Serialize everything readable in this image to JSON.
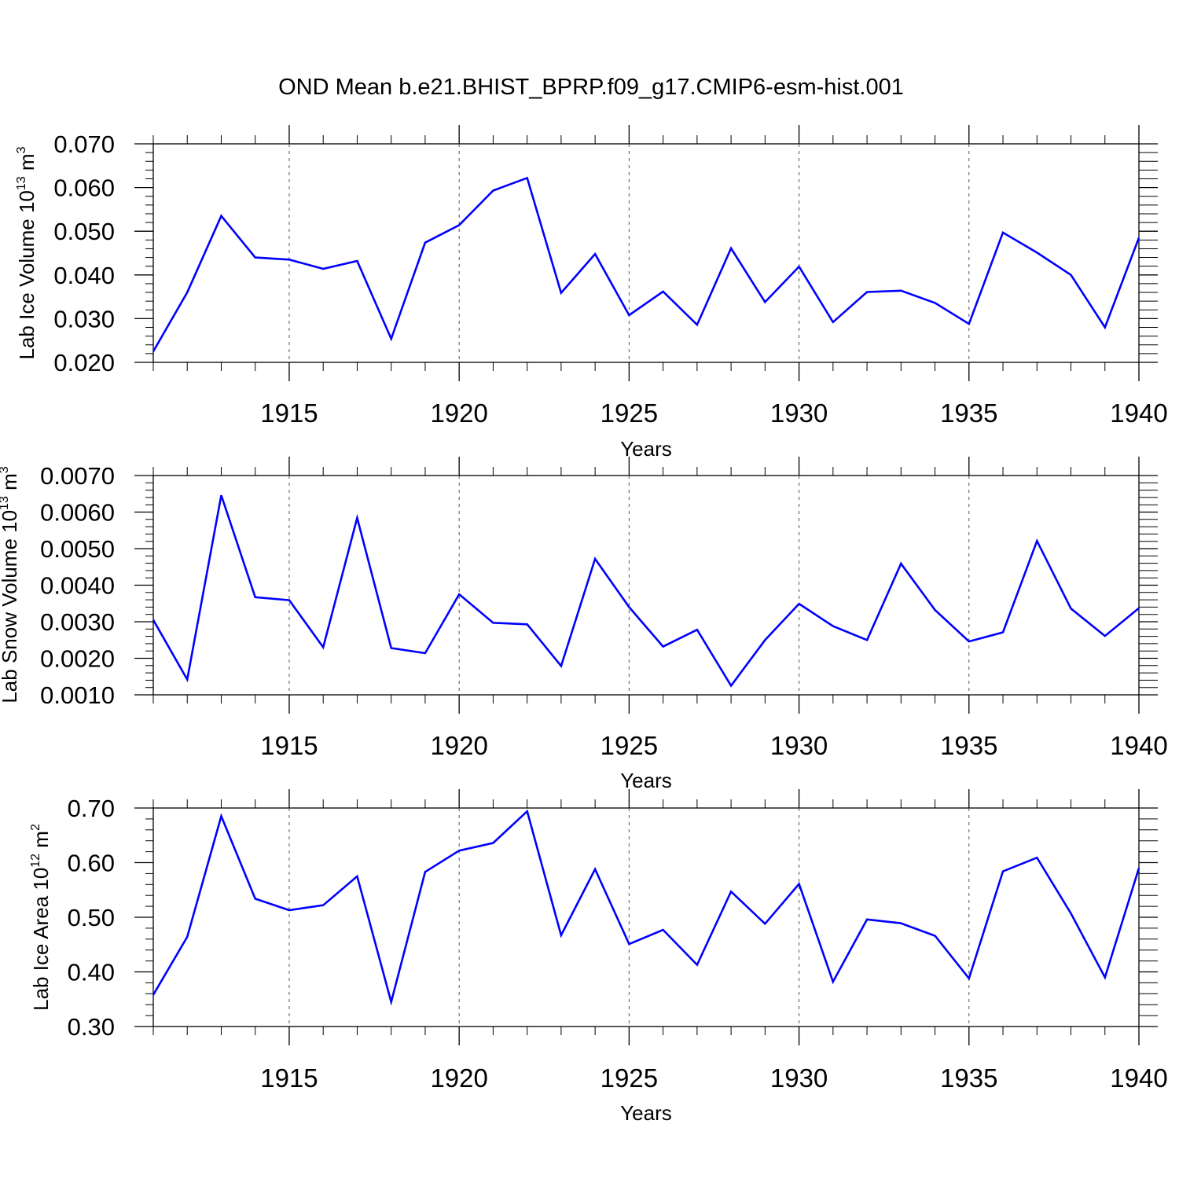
{
  "title": "OND Mean b.e21.BHIST_BPRP.f09_g17.CMIP6-esm-hist.001",
  "colors": {
    "line": "#0000ff",
    "axis": "#000000",
    "grid": "#555555"
  },
  "chart_data": [
    {
      "type": "line",
      "title": "",
      "xlabel": "Years",
      "ylabel_main": "Lab Ice Volume 10",
      "ylabel_exp": "13",
      "ylabel_unit": " m",
      "ylabel_unit_exp": "3",
      "xlim": [
        1911,
        1940
      ],
      "ylim": [
        0.02,
        0.07
      ],
      "xticks": [
        1915,
        1920,
        1925,
        1930,
        1935,
        1940
      ],
      "xtick_labels": [
        "1915",
        "1920",
        "1925",
        "1930",
        "1935",
        "1940"
      ],
      "yticks": [
        0.02,
        0.03,
        0.04,
        0.05,
        0.06,
        0.07
      ],
      "ytick_labels": [
        "0.020",
        "0.030",
        "0.040",
        "0.050",
        "0.060",
        "0.070"
      ],
      "grid_x": [
        1915,
        1920,
        1925,
        1930,
        1935
      ],
      "series": [
        {
          "name": "Lab Ice Volume",
          "x": [
            1911,
            1912,
            1913,
            1914,
            1915,
            1916,
            1917,
            1918,
            1919,
            1920,
            1921,
            1922,
            1923,
            1924,
            1925,
            1926,
            1927,
            1928,
            1929,
            1930,
            1931,
            1932,
            1933,
            1934,
            1935,
            1936,
            1937,
            1938,
            1939,
            1940
          ],
          "values": [
            0.0225,
            0.036,
            0.0535,
            0.044,
            0.0435,
            0.0414,
            0.0432,
            0.0254,
            0.0474,
            0.0514,
            0.0593,
            0.0622,
            0.0359,
            0.0448,
            0.0308,
            0.0362,
            0.0286,
            0.0461,
            0.0338,
            0.0419,
            0.0292,
            0.0361,
            0.0364,
            0.0336,
            0.0288,
            0.0497,
            0.0451,
            0.04,
            0.028,
            0.0485
          ]
        }
      ]
    },
    {
      "type": "line",
      "title": "",
      "xlabel": "Years",
      "ylabel_main": "Lab Snow Volume 10",
      "ylabel_exp": "13",
      "ylabel_unit": " m",
      "ylabel_unit_exp": "3",
      "xlim": [
        1911,
        1940
      ],
      "ylim": [
        0.001,
        0.007
      ],
      "xticks": [
        1915,
        1920,
        1925,
        1930,
        1935,
        1940
      ],
      "xtick_labels": [
        "1915",
        "1920",
        "1925",
        "1930",
        "1935",
        "1940"
      ],
      "yticks": [
        0.001,
        0.002,
        0.003,
        0.004,
        0.005,
        0.006,
        0.007
      ],
      "ytick_labels": [
        "0.0010",
        "0.0020",
        "0.0030",
        "0.0040",
        "0.0050",
        "0.0060",
        "0.0070"
      ],
      "grid_x": [
        1915,
        1920,
        1925,
        1930,
        1935
      ],
      "series": [
        {
          "name": "Lab Snow Volume",
          "x": [
            1911,
            1912,
            1913,
            1914,
            1915,
            1916,
            1917,
            1918,
            1919,
            1920,
            1921,
            1922,
            1923,
            1924,
            1925,
            1926,
            1927,
            1928,
            1929,
            1930,
            1931,
            1932,
            1933,
            1934,
            1935,
            1936,
            1937,
            1938,
            1939,
            1940
          ],
          "values": [
            0.00305,
            0.00142,
            0.00646,
            0.00367,
            0.00359,
            0.0023,
            0.00584,
            0.00228,
            0.00214,
            0.00375,
            0.00297,
            0.00293,
            0.00179,
            0.00472,
            0.0034,
            0.00232,
            0.00278,
            0.00125,
            0.0025,
            0.00349,
            0.00288,
            0.0025,
            0.00459,
            0.00332,
            0.00246,
            0.00271,
            0.00521,
            0.00336,
            0.00261,
            0.00337
          ]
        }
      ]
    },
    {
      "type": "line",
      "title": "",
      "xlabel": "Years",
      "ylabel_main": "Lab Ice Area 10",
      "ylabel_exp": "12",
      "ylabel_unit": " m",
      "ylabel_unit_exp": "2",
      "xlim": [
        1911,
        1940
      ],
      "ylim": [
        0.3,
        0.7
      ],
      "xticks": [
        1915,
        1920,
        1925,
        1930,
        1935,
        1940
      ],
      "xtick_labels": [
        "1915",
        "1920",
        "1925",
        "1930",
        "1935",
        "1940"
      ],
      "yticks": [
        0.3,
        0.4,
        0.5,
        0.6,
        0.7
      ],
      "ytick_labels": [
        "0.30",
        "0.40",
        "0.50",
        "0.60",
        "0.70"
      ],
      "grid_x": [
        1915,
        1920,
        1925,
        1930,
        1935
      ],
      "series": [
        {
          "name": "Lab Ice Area",
          "x": [
            1911,
            1912,
            1913,
            1914,
            1915,
            1916,
            1917,
            1918,
            1919,
            1920,
            1921,
            1922,
            1923,
            1924,
            1925,
            1926,
            1927,
            1928,
            1929,
            1930,
            1931,
            1932,
            1933,
            1934,
            1935,
            1936,
            1937,
            1938,
            1939,
            1940
          ],
          "values": [
            0.358,
            0.464,
            0.685,
            0.534,
            0.513,
            0.522,
            0.575,
            0.345,
            0.583,
            0.622,
            0.636,
            0.694,
            0.467,
            0.588,
            0.451,
            0.477,
            0.413,
            0.547,
            0.488,
            0.561,
            0.382,
            0.496,
            0.489,
            0.466,
            0.388,
            0.584,
            0.609,
            0.507,
            0.39,
            0.59
          ]
        }
      ]
    }
  ]
}
